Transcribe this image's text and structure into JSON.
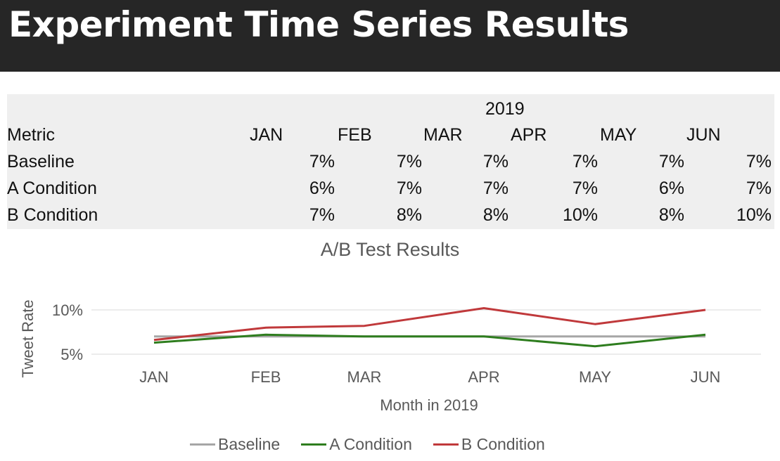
{
  "header": {
    "title": "Experiment Time Series Results"
  },
  "table": {
    "year": "2019",
    "metric_label": "Metric",
    "months": [
      "JAN",
      "FEB",
      "MAR",
      "APR",
      "MAY",
      "JUN"
    ],
    "rows": [
      {
        "label": "Baseline",
        "values": [
          "7%",
          "7%",
          "7%",
          "7%",
          "7%",
          "7%"
        ]
      },
      {
        "label": "A Condition",
        "values": [
          "6%",
          "7%",
          "7%",
          "7%",
          "6%",
          "7%"
        ]
      },
      {
        "label": "B Condition",
        "values": [
          "7%",
          "8%",
          "8%",
          "10%",
          "8%",
          "10%"
        ]
      }
    ]
  },
  "chart_data": {
    "type": "line",
    "title": "A/B Test Results",
    "xlabel": "Month in 2019",
    "ylabel": "Tweet Rate",
    "categories": [
      "JAN",
      "FEB",
      "MAR",
      "APR",
      "MAY",
      "JUN"
    ],
    "yticks": [
      "5%",
      "10%"
    ],
    "ylim": [
      0.05,
      0.1
    ],
    "grid": true,
    "legend_position": "bottom",
    "series": [
      {
        "name": "Baseline",
        "color": "#a6a6a6",
        "values": [
          0.07,
          0.07,
          0.07,
          0.07,
          0.07,
          0.07
        ]
      },
      {
        "name": "A Condition",
        "color": "#2e7d1e",
        "values": [
          0.063,
          0.072,
          0.07,
          0.07,
          0.059,
          0.072
        ]
      },
      {
        "name": "B Condition",
        "color": "#c0393b",
        "values": [
          0.066,
          0.08,
          0.082,
          0.102,
          0.084,
          0.1
        ]
      }
    ]
  }
}
